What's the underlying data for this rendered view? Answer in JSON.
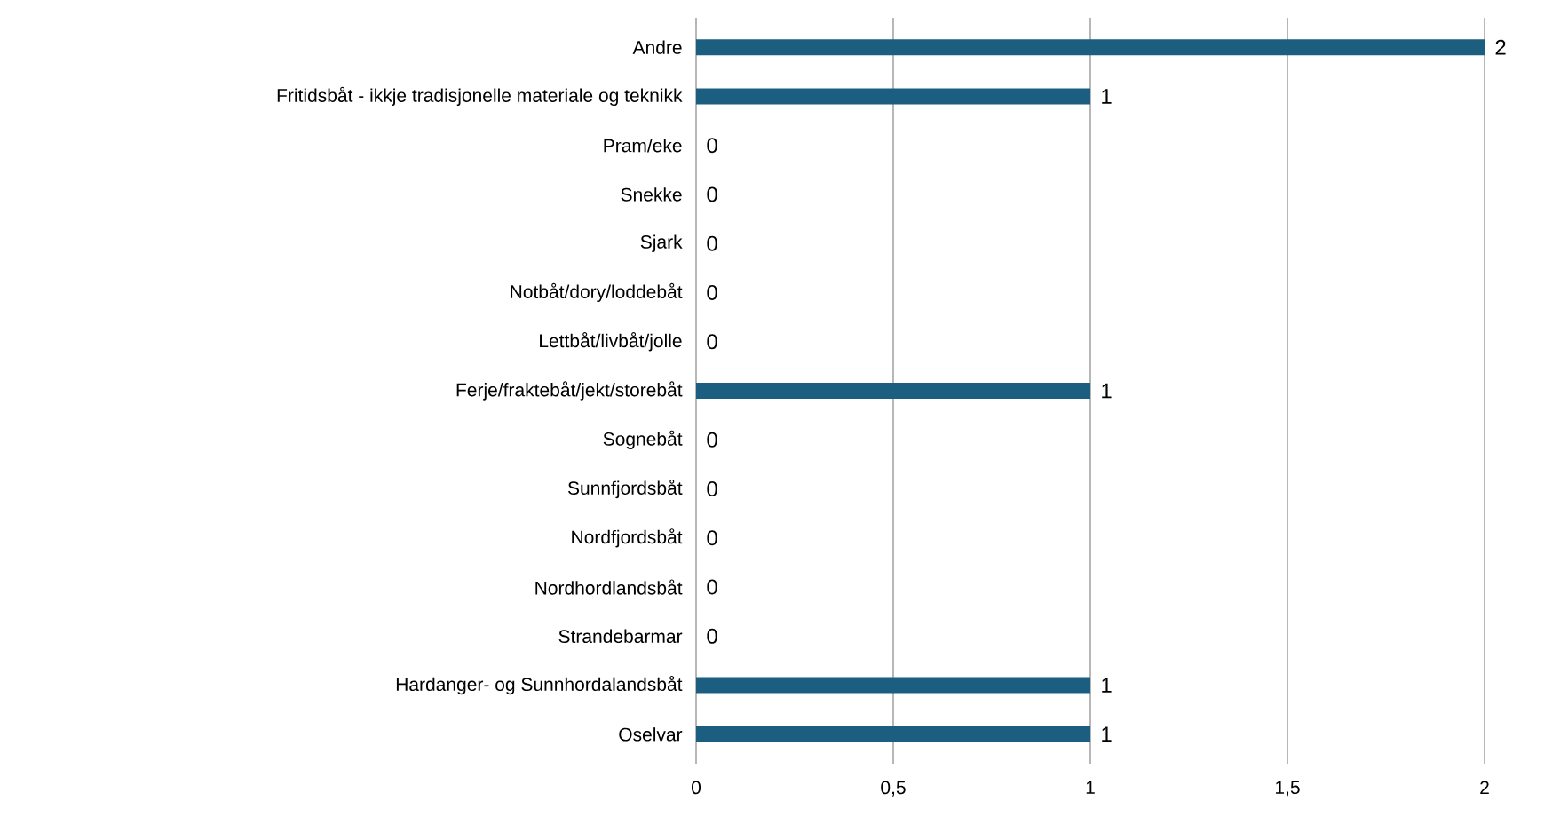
{
  "chart_data": {
    "type": "bar",
    "orientation": "horizontal",
    "categories": [
      "Andre",
      "Fritidsbåt - ikkje tradisjonelle materiale og teknikk",
      "Pram/eke",
      "Snekke",
      "Sjark",
      "Notbåt/dory/loddebåt",
      "Lettbåt/livbåt/jolle",
      "Ferje/fraktebåt/jekt/storebåt",
      "Sognebåt",
      "Sunnfjordsbåt",
      "Nordfjordsbåt",
      "Nordhordlandsbåt",
      "Strandebarmar",
      "Hardanger- og Sunnhordalandsbåt",
      "Oselvar"
    ],
    "values": [
      2,
      1,
      0,
      0,
      0,
      0,
      0,
      1,
      0,
      0,
      0,
      0,
      0,
      1,
      1
    ],
    "color": "#1b5e80",
    "xlim": [
      0,
      2
    ],
    "xticks": [
      0,
      {
        "value": 0.5,
        "label": "0,5"
      },
      1,
      {
        "value": 1.5,
        "label": "1,5"
      },
      2
    ],
    "grid": "x",
    "data_labels": true
  }
}
